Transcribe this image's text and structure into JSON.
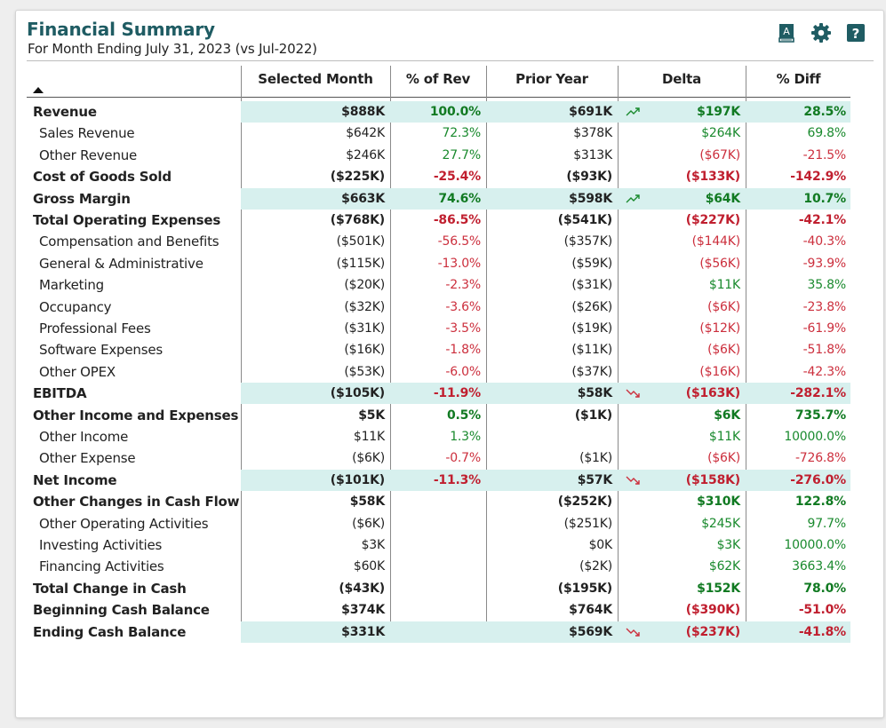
{
  "header": {
    "title": "Financial Summary",
    "subtitle": "For Month Ending July 31, 2023 (vs Jul-2022)"
  },
  "toolbar": {
    "icons": [
      "book-a-icon",
      "gear-icon",
      "help-icon"
    ],
    "book_letter": "A",
    "help_glyph": "?"
  },
  "colors": {
    "title": "#1f5c63",
    "highlight_row": "#d7f0ee",
    "positive": "#1a8a2e",
    "negative": "#cc2f3d",
    "toolbar_icon": "#1f5c63"
  },
  "table": {
    "columns": [
      "Selected Month",
      "% of Rev",
      "Prior Year",
      "Delta",
      "% Diff"
    ],
    "rows": [
      {
        "label": "Revenue",
        "bold": true,
        "hl": true,
        "sel": "$888K",
        "rev": "100.0%",
        "prior": "$691K",
        "delta": "$197K",
        "diff": "28.5%",
        "trend": "up"
      },
      {
        "label": "Sales Revenue",
        "sel": "$642K",
        "rev": "72.3%",
        "prior": "$378K",
        "delta": "$264K",
        "diff": "69.8%"
      },
      {
        "label": "Other Revenue",
        "sel": "$246K",
        "rev": "27.7%",
        "prior": "$313K",
        "delta": "($67K)",
        "diff": "-21.5%"
      },
      {
        "label": "Cost of Goods Sold",
        "bold": true,
        "sel": "($225K)",
        "rev": "-25.4%",
        "prior": "($93K)",
        "delta": "($133K)",
        "diff": "-142.9%"
      },
      {
        "label": "Gross Margin",
        "bold": true,
        "hl": true,
        "sel": "$663K",
        "rev": "74.6%",
        "prior": "$598K",
        "delta": "$64K",
        "diff": "10.7%",
        "trend": "up"
      },
      {
        "label": "Total Operating Expenses",
        "bold": true,
        "sel": "($768K)",
        "rev": "-86.5%",
        "prior": "($541K)",
        "delta": "($227K)",
        "diff": "-42.1%"
      },
      {
        "label": "Compensation and Benefits",
        "sel": "($501K)",
        "rev": "-56.5%",
        "prior": "($357K)",
        "delta": "($144K)",
        "diff": "-40.3%"
      },
      {
        "label": "General & Administrative",
        "sel": "($115K)",
        "rev": "-13.0%",
        "prior": "($59K)",
        "delta": "($56K)",
        "diff": "-93.9%"
      },
      {
        "label": "Marketing",
        "sel": "($20K)",
        "rev": "-2.3%",
        "prior": "($31K)",
        "delta": "$11K",
        "diff": "35.8%"
      },
      {
        "label": "Occupancy",
        "sel": "($32K)",
        "rev": "-3.6%",
        "prior": "($26K)",
        "delta": "($6K)",
        "diff": "-23.8%"
      },
      {
        "label": "Professional Fees",
        "sel": "($31K)",
        "rev": "-3.5%",
        "prior": "($19K)",
        "delta": "($12K)",
        "diff": "-61.9%"
      },
      {
        "label": "Software Expenses",
        "sel": "($16K)",
        "rev": "-1.8%",
        "prior": "($11K)",
        "delta": "($6K)",
        "diff": "-51.8%"
      },
      {
        "label": "Other OPEX",
        "sel": "($53K)",
        "rev": "-6.0%",
        "prior": "($37K)",
        "delta": "($16K)",
        "diff": "-42.3%"
      },
      {
        "label": "EBITDA",
        "bold": true,
        "hl": true,
        "sel": "($105K)",
        "rev": "-11.9%",
        "prior": "$58K",
        "delta": "($163K)",
        "diff": "-282.1%",
        "trend": "down"
      },
      {
        "label": "Other Income and Expenses",
        "bold": true,
        "sel": "$5K",
        "rev": "0.5%",
        "prior": "($1K)",
        "delta": "$6K",
        "diff": "735.7%"
      },
      {
        "label": "Other Income",
        "sel": "$11K",
        "rev": "1.3%",
        "prior": "",
        "delta": "$11K",
        "diff": "10000.0%"
      },
      {
        "label": "Other Expense",
        "sel": "($6K)",
        "rev": "-0.7%",
        "prior": "($1K)",
        "delta": "($6K)",
        "diff": "-726.8%"
      },
      {
        "label": "Net Income",
        "bold": true,
        "hl": true,
        "sel": "($101K)",
        "rev": "-11.3%",
        "prior": "$57K",
        "delta": "($158K)",
        "diff": "-276.0%",
        "trend": "down"
      },
      {
        "label": "Other Changes in Cash Flow",
        "bold": true,
        "sel": "$58K",
        "rev": "",
        "prior": "($252K)",
        "delta": "$310K",
        "diff": "122.8%"
      },
      {
        "label": "Other Operating Activities",
        "sel": "($6K)",
        "rev": "",
        "prior": "($251K)",
        "delta": "$245K",
        "diff": "97.7%"
      },
      {
        "label": "Investing Activities",
        "sel": "$3K",
        "rev": "",
        "prior": "$0K",
        "delta": "$3K",
        "diff": "10000.0%"
      },
      {
        "label": "Financing Activities",
        "sel": "$60K",
        "rev": "",
        "prior": "($2K)",
        "delta": "$62K",
        "diff": "3663.4%"
      },
      {
        "label": "Total Change in Cash",
        "bold": true,
        "sel": "($43K)",
        "rev": "",
        "prior": "($195K)",
        "delta": "$152K",
        "diff": "78.0%"
      },
      {
        "label": "Beginning Cash Balance",
        "bold": true,
        "sel": "$374K",
        "rev": "",
        "prior": "$764K",
        "delta": "($390K)",
        "diff": "-51.0%"
      },
      {
        "label": "Ending Cash Balance",
        "bold": true,
        "hl": true,
        "sel": "$331K",
        "rev": "",
        "prior": "$569K",
        "delta": "($237K)",
        "diff": "-41.8%",
        "trend": "down"
      }
    ]
  }
}
